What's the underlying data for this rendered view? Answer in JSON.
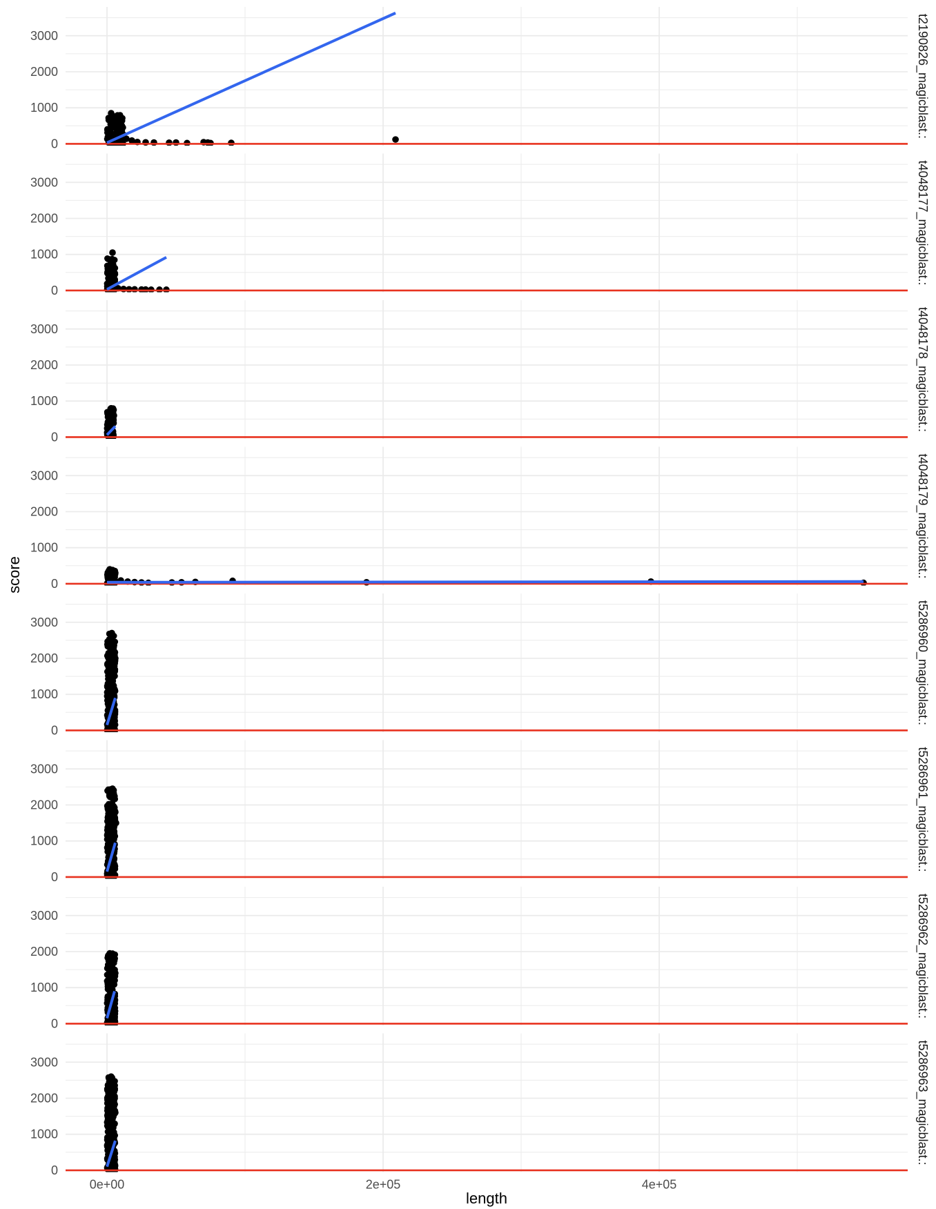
{
  "chart_data": {
    "type": "scatter",
    "xlabel": "length",
    "ylabel": "score",
    "xlim": [
      -30000,
      580000
    ],
    "ylim": [
      -50,
      3800
    ],
    "x_ticks": [
      0,
      200000,
      400000
    ],
    "x_tick_labels": [
      "0e+00",
      "2e+05",
      "4e+05"
    ],
    "y_ticks": [
      0,
      1000,
      2000,
      3000
    ],
    "y_tick_labels": [
      "0",
      "1000",
      "2000",
      "3000"
    ],
    "grid": true,
    "colors": {
      "points": "#000000",
      "trend_line": "#3366ee",
      "reference_line": "#e8321f",
      "grid": "#ebebeb"
    },
    "reference_line": {
      "orientation": "horizontal",
      "y": 0
    },
    "panels": [
      {
        "label": "t2190826_magicblast.:",
        "trend": [
          [
            0,
            30
          ],
          [
            209000,
            3630
          ]
        ],
        "cluster": {
          "x_max": 12000,
          "y_max": 800
        },
        "points": [
          [
            3000,
            850
          ],
          [
            5000,
            500
          ],
          [
            7000,
            300
          ],
          [
            10000,
            260
          ],
          [
            14000,
            140
          ],
          [
            18000,
            90
          ],
          [
            22000,
            50
          ],
          [
            28000,
            40
          ],
          [
            34000,
            35
          ],
          [
            45000,
            30
          ],
          [
            50000,
            35
          ],
          [
            58000,
            20
          ],
          [
            70000,
            45
          ],
          [
            73000,
            35
          ],
          [
            75000,
            20
          ],
          [
            90000,
            25
          ],
          [
            209000,
            120
          ]
        ]
      },
      {
        "label": "t4048177_magicblast.:",
        "trend": [
          [
            0,
            30
          ],
          [
            43000,
            920
          ]
        ],
        "cluster": {
          "x_max": 6000,
          "y_max": 900
        },
        "points": [
          [
            4000,
            1050
          ],
          [
            8000,
            60
          ],
          [
            12000,
            40
          ],
          [
            16000,
            30
          ],
          [
            20000,
            30
          ],
          [
            25000,
            25
          ],
          [
            28000,
            25
          ],
          [
            32000,
            20
          ],
          [
            38000,
            20
          ],
          [
            43000,
            20
          ]
        ]
      },
      {
        "label": "t4048178_magicblast.:",
        "trend": [
          [
            0,
            60
          ],
          [
            6000,
            300
          ]
        ],
        "cluster": {
          "x_max": 5000,
          "y_max": 800
        },
        "points": [
          [
            3000,
            800
          ],
          [
            5000,
            600
          ],
          [
            2000,
            50
          ]
        ]
      },
      {
        "label": "t4048179_magicblast.:",
        "trend": [
          [
            0,
            40
          ],
          [
            548000,
            60
          ]
        ],
        "cluster": {
          "x_max": 6000,
          "y_max": 380
        },
        "points": [
          [
            2000,
            400
          ],
          [
            4000,
            380
          ],
          [
            6000,
            300
          ],
          [
            10000,
            90
          ],
          [
            15000,
            60
          ],
          [
            20000,
            45
          ],
          [
            25000,
            35
          ],
          [
            30000,
            25
          ],
          [
            47000,
            35
          ],
          [
            54000,
            40
          ],
          [
            64000,
            50
          ],
          [
            91000,
            80
          ],
          [
            188000,
            40
          ],
          [
            394000,
            60
          ],
          [
            548000,
            25
          ]
        ]
      },
      {
        "label": "t5286960_magicblast.:",
        "trend": [
          [
            0,
            150
          ],
          [
            6000,
            900
          ]
        ],
        "cluster": {
          "x_max": 6000,
          "y_max": 2700
        },
        "points": [
          [
            3500,
            2700
          ],
          [
            6000,
            2000
          ],
          [
            5000,
            1500
          ]
        ]
      },
      {
        "label": "t5286961_magicblast.:",
        "trend": [
          [
            0,
            150
          ],
          [
            6000,
            950
          ]
        ],
        "cluster": {
          "x_max": 6000,
          "y_max": 2450
        },
        "points": [
          [
            4000,
            2450
          ],
          [
            6000,
            1800
          ],
          [
            6500,
            1500
          ]
        ]
      },
      {
        "label": "t5286962_magicblast.:",
        "trend": [
          [
            0,
            150
          ],
          [
            5500,
            900
          ]
        ],
        "cluster": {
          "x_max": 6000,
          "y_max": 1950
        },
        "points": [
          [
            2000,
            1950
          ],
          [
            4500,
            1500
          ],
          [
            6000,
            1400
          ]
        ]
      },
      {
        "label": "t5286963_magicblast.:",
        "trend": [
          [
            0,
            100
          ],
          [
            6000,
            820
          ]
        ],
        "cluster": {
          "x_max": 6000,
          "y_max": 2600
        },
        "points": [
          [
            3000,
            2600
          ],
          [
            5000,
            2000
          ],
          [
            6000,
            1600
          ]
        ]
      }
    ]
  }
}
